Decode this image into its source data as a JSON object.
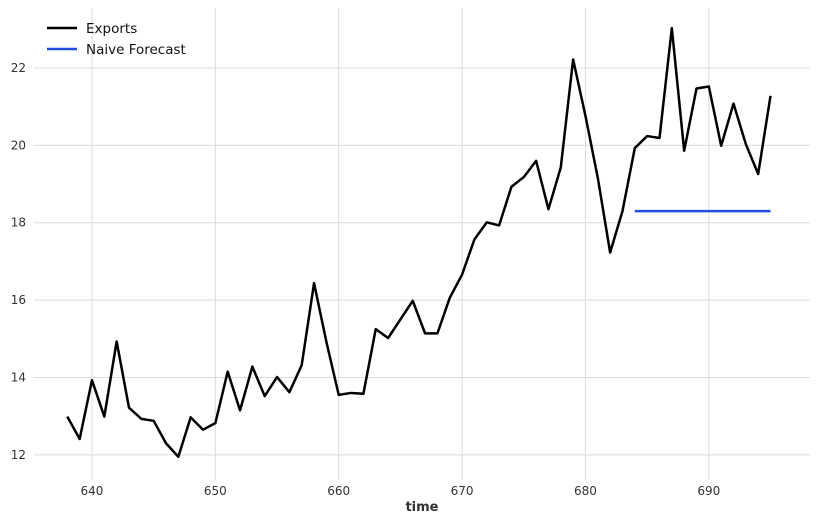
{
  "chart_data": {
    "type": "line",
    "xlabel": "time",
    "ylabel": "",
    "xlim": [
      635.3,
      698.2
    ],
    "ylim": [
      11.35,
      23.55
    ],
    "xticks": [
      640,
      650,
      660,
      670,
      680,
      690
    ],
    "yticks": [
      12,
      14,
      16,
      18,
      20,
      22
    ],
    "grid": true,
    "legend_position": "top-left",
    "series": [
      {
        "name": "Exports",
        "color": "#000000",
        "x": [
          638,
          639,
          640,
          641,
          642,
          643,
          644,
          645,
          646,
          647,
          648,
          649,
          650,
          651,
          652,
          653,
          654,
          655,
          656,
          657,
          658,
          659,
          660,
          661,
          662,
          663,
          664,
          665,
          666,
          667,
          668,
          669,
          670,
          671,
          672,
          673,
          674,
          675,
          676,
          677,
          678,
          679,
          680,
          681,
          682,
          683,
          684,
          685,
          686,
          687,
          688,
          689,
          690,
          691,
          692,
          693,
          694,
          695
        ],
        "values": [
          12.99,
          12.41,
          13.93,
          12.99,
          14.93,
          13.22,
          12.93,
          12.88,
          12.3,
          11.95,
          12.97,
          12.65,
          12.82,
          14.15,
          13.15,
          14.28,
          13.52,
          14.01,
          13.62,
          14.32,
          16.44,
          14.92,
          13.55,
          13.6,
          13.58,
          15.25,
          15.02,
          15.5,
          15.98,
          15.14,
          15.14,
          16.06,
          16.66,
          17.57,
          18.01,
          17.93,
          18.93,
          19.18,
          19.6,
          18.35,
          19.43,
          22.22,
          20.76,
          19.16,
          17.23,
          18.3,
          19.93,
          20.24,
          20.19,
          23.03,
          19.86,
          21.47,
          21.52,
          19.99,
          21.08,
          20.03,
          19.26,
          21.28
        ]
      },
      {
        "name": "Naive Forecast",
        "color": "#1f4fdc",
        "x": [
          684,
          685,
          686,
          687,
          688,
          689,
          690,
          691,
          692,
          693,
          694,
          695
        ],
        "values": [
          18.3,
          18.3,
          18.3,
          18.3,
          18.3,
          18.3,
          18.3,
          18.3,
          18.3,
          18.3,
          18.3,
          18.3
        ]
      }
    ]
  }
}
